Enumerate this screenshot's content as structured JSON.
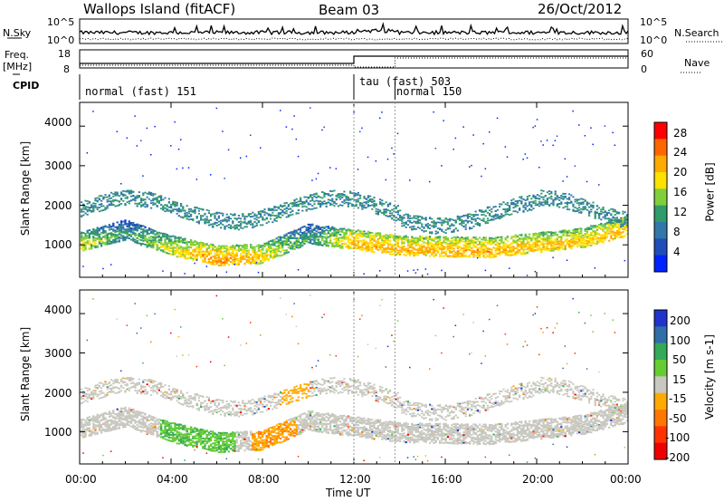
{
  "header": {
    "station": "Wallops Island (fitACF)",
    "beam": "Beam 03",
    "date": "26/Oct/2012"
  },
  "left_labels": {
    "nsky": "N.Sky",
    "freq": "Freq.",
    "freq_unit": "[MHz]",
    "cpid": "CPID"
  },
  "right_labels": {
    "nsearch": "N.Search",
    "nave": "Nave"
  },
  "noise_axis": {
    "left_top": "10^5",
    "left_bottom": "10^0",
    "right_top": "10^5",
    "right_bottom": "10^0"
  },
  "freq_axis": {
    "left_ticks": [
      "18",
      "8"
    ],
    "right_ticks": [
      "60",
      "0"
    ]
  },
  "cpid_segments": [
    {
      "label": "normal (fast) 151",
      "start_hr": 0,
      "end_hr": 12
    },
    {
      "label": "tau (fast) 503",
      "start_hr": 12,
      "end_hr": 13.8
    },
    {
      "label": "normal 150",
      "start_hr": 13.8,
      "end_hr": 24
    }
  ],
  "y_axis": {
    "label": "Slant Range [km]",
    "ticks": [
      "1000",
      "2000",
      "3000",
      "4000"
    ],
    "range_km": [
      180,
      4600
    ]
  },
  "x_axis": {
    "label": "Time UT",
    "ticks": [
      "00:00",
      "04:00",
      "08:00",
      "12:00",
      "16:00",
      "20:00",
      "00:00"
    ],
    "range_hr": [
      0,
      24
    ]
  },
  "power_colorbar": {
    "label": "Power [dB]",
    "ticks": [
      "4",
      "8",
      "12",
      "16",
      "20",
      "24",
      "28"
    ],
    "colors": [
      "#0022ff",
      "#1f4db8",
      "#3377aa",
      "#2f9a6a",
      "#7fcf3a",
      "#ffe000",
      "#ffaa00",
      "#ff6600",
      "#ff0000"
    ]
  },
  "velocity_colorbar": {
    "label": "Velocity [m s-1]",
    "ticks": [
      "200",
      "100",
      "50",
      "15",
      "-15",
      "-50",
      "-100",
      "-200"
    ],
    "colors": [
      "#2233cc",
      "#2f6ea8",
      "#33aa55",
      "#66cc33",
      "#c8c8c0",
      "#ffaa00",
      "#ff7700",
      "#ff3300",
      "#ee0000"
    ]
  },
  "chart_data": {
    "type": "heatmap",
    "title": "Wallops Island (fitACF) Beam 03 26/Oct/2012",
    "xlabel": "Time UT",
    "ylabel": "Slant Range [km]",
    "xlim_hr": [
      0,
      24
    ],
    "ylim_km": [
      180,
      4600
    ],
    "power_band_centers_km": [
      {
        "hr": 0,
        "km": 1000,
        "db": 22
      },
      {
        "hr": 2,
        "km": 1300,
        "db": 14
      },
      {
        "hr": 4,
        "km": 900,
        "db": 22
      },
      {
        "hr": 6,
        "km": 650,
        "db": 28
      },
      {
        "hr": 8,
        "km": 700,
        "db": 24
      },
      {
        "hr": 10,
        "km": 1200,
        "db": 14
      },
      {
        "hr": 12,
        "km": 1050,
        "db": 26
      },
      {
        "hr": 14,
        "km": 900,
        "db": 26
      },
      {
        "hr": 18,
        "km": 850,
        "db": 26
      },
      {
        "hr": 22,
        "km": 1100,
        "db": 24
      },
      {
        "hr": 24,
        "km": 1400,
        "db": 26
      }
    ],
    "velocity_features": [
      {
        "start_hr": 3.5,
        "end_hr": 6.8,
        "km_min": 700,
        "km_max": 1400,
        "velocity": 30
      },
      {
        "start_hr": 7.5,
        "end_hr": 9.5,
        "km_min": 700,
        "km_max": 1300,
        "velocity": -40
      },
      {
        "start_hr": 8.8,
        "end_hr": 10,
        "km_min": 1600,
        "km_max": 2300,
        "velocity": -40
      }
    ]
  }
}
